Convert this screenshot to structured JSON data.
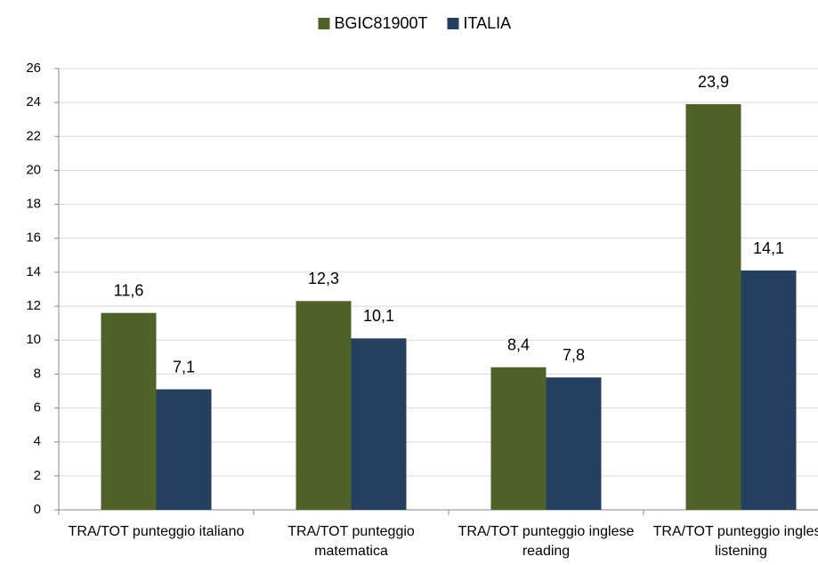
{
  "chart_data": {
    "type": "bar",
    "categories": [
      "TRA/TOT punteggio italiano",
      "TRA/TOT punteggio matematica",
      "TRA/TOT punteggio inglese reading",
      "TRA/TOT punteggio inglese listening"
    ],
    "series": [
      {
        "name": "BGIC81900T",
        "color": "#4f6228",
        "values": [
          11.6,
          12.3,
          8.4,
          23.9
        ],
        "value_labels": [
          "11,6",
          "12,3",
          "8,4",
          "23,9"
        ]
      },
      {
        "name": "ITALIA",
        "color": "#243f60",
        "values": [
          7.1,
          10.1,
          7.8,
          14.1
        ],
        "value_labels": [
          "7,1",
          "10,1",
          "7,8",
          "14,1"
        ]
      }
    ],
    "ylim": [
      0,
      26
    ],
    "yticks": [
      0,
      2,
      4,
      6,
      8,
      10,
      12,
      14,
      16,
      18,
      20,
      22,
      24,
      26
    ],
    "grid": true,
    "legend": "top"
  }
}
